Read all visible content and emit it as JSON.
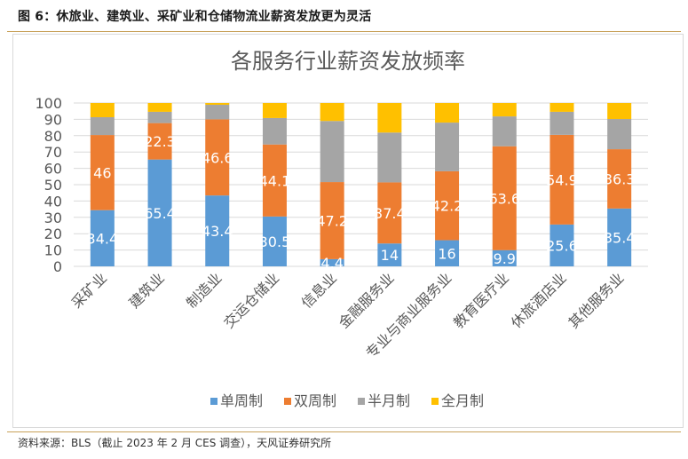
{
  "figure": {
    "title": "图 6：休旅业、建筑业、采矿业和仓储物流业薪资发放更为灵活",
    "source": "资料来源：BLS（截止 2023 年 2 月 CES 调查），天风证券研究所"
  },
  "colors": {
    "单周制": "#5b9bd5",
    "双周制": "#ed7d31",
    "半月制": "#a5a5a5",
    "全月制": "#ffc000",
    "grid": "#d9d9d9",
    "axis_text": "#595959",
    "data_label": "#ffffff"
  },
  "chart_data": {
    "type": "bar",
    "stacked": true,
    "title": "各服务行业薪资发放频率",
    "xlabel": "",
    "ylabel": "",
    "ylim": [
      0,
      100
    ],
    "yticks": [
      0,
      10,
      20,
      30,
      40,
      50,
      60,
      70,
      80,
      90,
      100
    ],
    "grid": true,
    "legend_position": "bottom",
    "categories": [
      "采矿业",
      "建筑业",
      "制造业",
      "交运仓储业",
      "信息业",
      "金融服务业",
      "专业与商业服务业",
      "教育医疗业",
      "休旅酒店业",
      "其他服务业"
    ],
    "series": [
      {
        "name": "单周制",
        "values": [
          34.4,
          65.4,
          43.4,
          30.5,
          4.4,
          14,
          16,
          9.9,
          25.6,
          35.4
        ],
        "labels": [
          "34.4",
          "65.4",
          "43.4",
          "30.5",
          "4.4",
          "14",
          "16",
          "9.9",
          "25.6",
          "35.4"
        ]
      },
      {
        "name": "双周制",
        "values": [
          46,
          22.3,
          46.6,
          44.1,
          47.2,
          37.4,
          42.2,
          63.6,
          54.9,
          36.3
        ],
        "labels": [
          "46",
          "22.3",
          "46.6",
          "44.1",
          "47.2",
          "37.4",
          "42.2",
          "63.6",
          "54.9",
          "36.3"
        ]
      },
      {
        "name": "半月制",
        "values": [
          10.9,
          6.9,
          8.9,
          16.2,
          37.4,
          30.5,
          29.8,
          18.3,
          14.1,
          18.5
        ]
      },
      {
        "name": "全月制",
        "values": [
          8.7,
          5.4,
          1.1,
          9.2,
          11.0,
          18.1,
          12.0,
          8.2,
          5.4,
          9.8
        ]
      }
    ]
  }
}
